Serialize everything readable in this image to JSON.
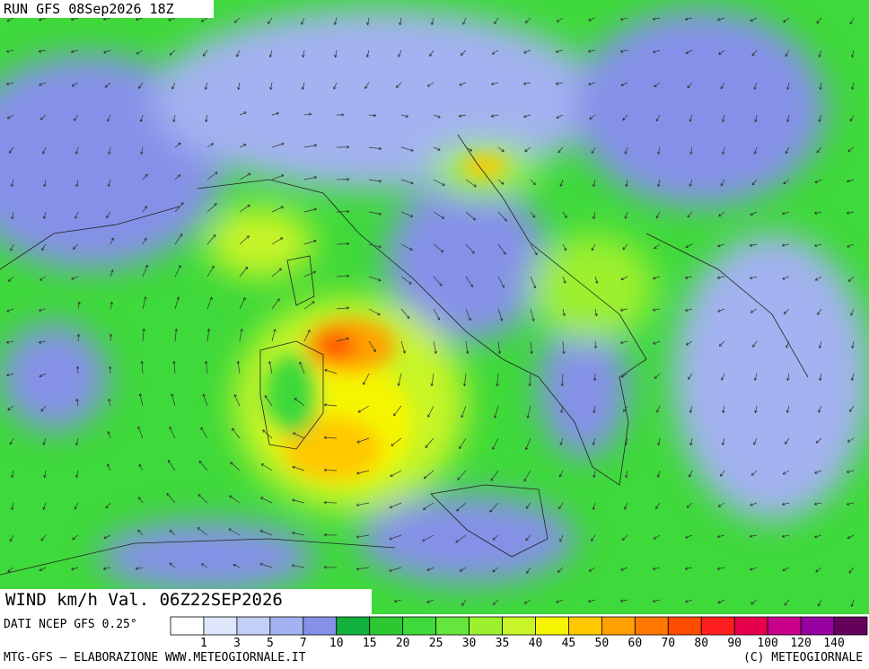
{
  "header": {
    "run": "RUN GFS 08Sep2026 18Z"
  },
  "map": {
    "title": "WIND km/h Val. 06Z22SEP2026"
  },
  "legend": {
    "source": "DATI NCEP GFS 0.25°",
    "colors": [
      "#ffffff",
      "#dde6fb",
      "#c2cff6",
      "#a3b2f0",
      "#8591e8",
      "#12b03c",
      "#2bc832",
      "#3ed93a",
      "#64e63c",
      "#9cf02e",
      "#c8f528",
      "#f5f500",
      "#ffc800",
      "#ffa000",
      "#ff7800",
      "#ff4b00",
      "#ff1e1e",
      "#e6004b",
      "#c8008c",
      "#9600a0",
      "#64005a"
    ],
    "labels": [
      "1",
      "3",
      "5",
      "7",
      "10",
      "15",
      "20",
      "25",
      "30",
      "35",
      "40",
      "45",
      "50",
      "60",
      "70",
      "80",
      "90",
      "100",
      "120",
      "140"
    ]
  },
  "footer": {
    "left": "MTG-GFS — ELABORAZIONE WWW.METEOGIORNALE.IT",
    "right": "(C) METEOGIORNALE"
  }
}
